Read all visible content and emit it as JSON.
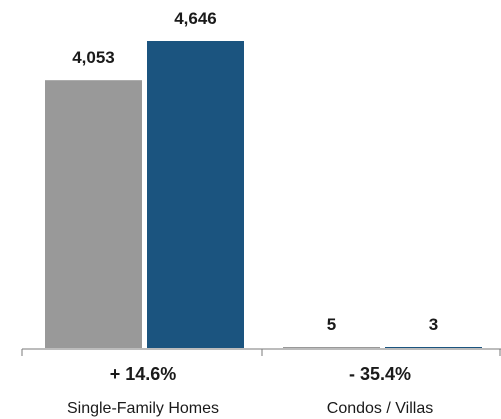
{
  "chart_data": {
    "type": "bar",
    "categories": [
      "Single-Family Homes",
      "Condos / Villas"
    ],
    "series": [
      {
        "values": [
          4053,
          5
        ],
        "color": "#999999"
      },
      {
        "values": [
          4646,
          3
        ],
        "color": "#1b547f"
      }
    ],
    "value_labels": [
      [
        "4,053",
        "5"
      ],
      [
        "4,646",
        "3"
      ]
    ],
    "changes": [
      "+ 14.6%",
      "- 35.4%"
    ],
    "ylim": [
      0,
      4646
    ],
    "legend": "none",
    "grid": false
  }
}
